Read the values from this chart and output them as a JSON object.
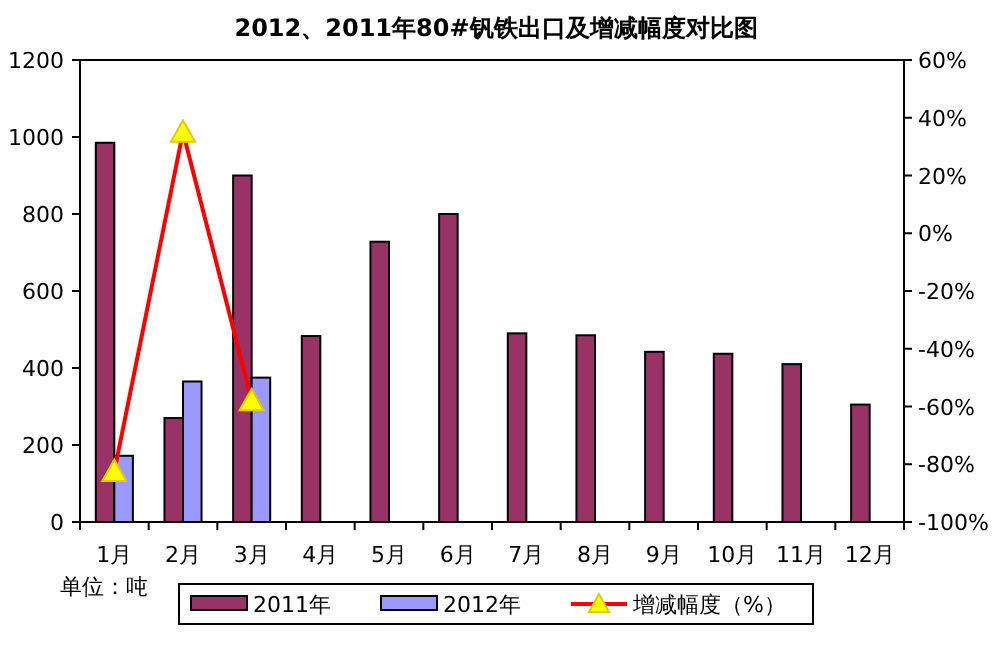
{
  "chart_data": {
    "type": "bar",
    "title": "2012、2011年80#钒铁出口及增减幅度对比图",
    "categories": [
      "1月",
      "2月",
      "3月",
      "4月",
      "5月",
      "6月",
      "7月",
      "8月",
      "9月",
      "10月",
      "11月",
      "12月"
    ],
    "series": [
      {
        "name": "2011年",
        "color": "#993366",
        "values": [
          985,
          270,
          900,
          483,
          728,
          800,
          490,
          485,
          442,
          437,
          410,
          305
        ]
      },
      {
        "name": "2012年",
        "color": "#9999ff",
        "values": [
          172,
          365,
          375,
          null,
          null,
          null,
          null,
          null,
          null,
          null,
          null,
          null
        ]
      },
      {
        "name": "增减幅度（%）",
        "type": "line",
        "axis": "y2",
        "color": "#ff0000",
        "marker": "triangle",
        "values": [
          -82.5,
          35,
          -58,
          null,
          null,
          null,
          null,
          null,
          null,
          null,
          null,
          null
        ]
      }
    ],
    "ylim": [
      0,
      1200
    ],
    "yticks": [
      0,
      200,
      400,
      600,
      800,
      1000,
      1200
    ],
    "y2lim": [
      -100,
      60
    ],
    "y2ticks": [
      {
        "value": -100,
        "label": "-100%"
      },
      {
        "value": -80,
        "label": "-80%"
      },
      {
        "value": -60,
        "label": "-60%"
      },
      {
        "value": -40,
        "label": "-40%"
      },
      {
        "value": -20,
        "label": "-20%"
      },
      {
        "value": 0,
        "label": "0%"
      },
      {
        "value": 20,
        "label": "20%"
      },
      {
        "value": 40,
        "label": "40%"
      },
      {
        "value": 60,
        "label": "60%"
      }
    ],
    "legend": "bottom",
    "annotations": [
      "单位：吨"
    ]
  }
}
